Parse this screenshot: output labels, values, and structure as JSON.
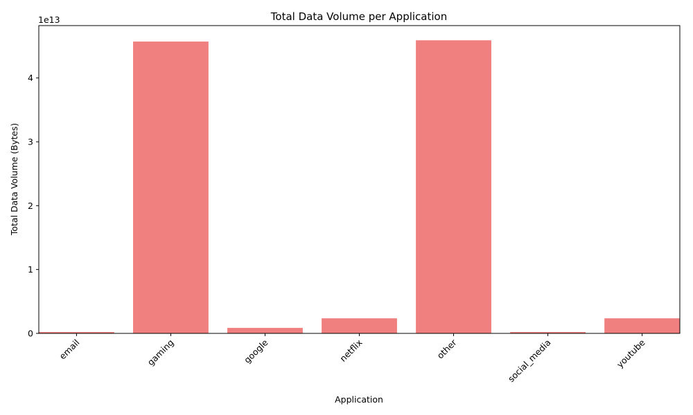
{
  "chart_data": {
    "type": "bar",
    "title": "Total Data Volume per Application",
    "xlabel": "Application",
    "ylabel": "Total Data Volume (Bytes)",
    "offset_label": "1e13",
    "categories": [
      "email",
      "gaming",
      "google",
      "netflix",
      "other",
      "social_media",
      "youtube"
    ],
    "values": [
      220000000000.0,
      45700000000000.0,
      860000000000.0,
      2360000000000.0,
      45900000000000.0,
      220000000000.0,
      2360000000000.0
    ],
    "ylim": [
      0,
      48200000000000.0
    ],
    "yticks": [
      0,
      10000000000000.0,
      20000000000000.0,
      30000000000000.0,
      40000000000000.0
    ],
    "ytick_labels": [
      "0",
      "1",
      "2",
      "3",
      "4"
    ],
    "bar_color": "#f08080",
    "grid": false,
    "legend": "none"
  }
}
